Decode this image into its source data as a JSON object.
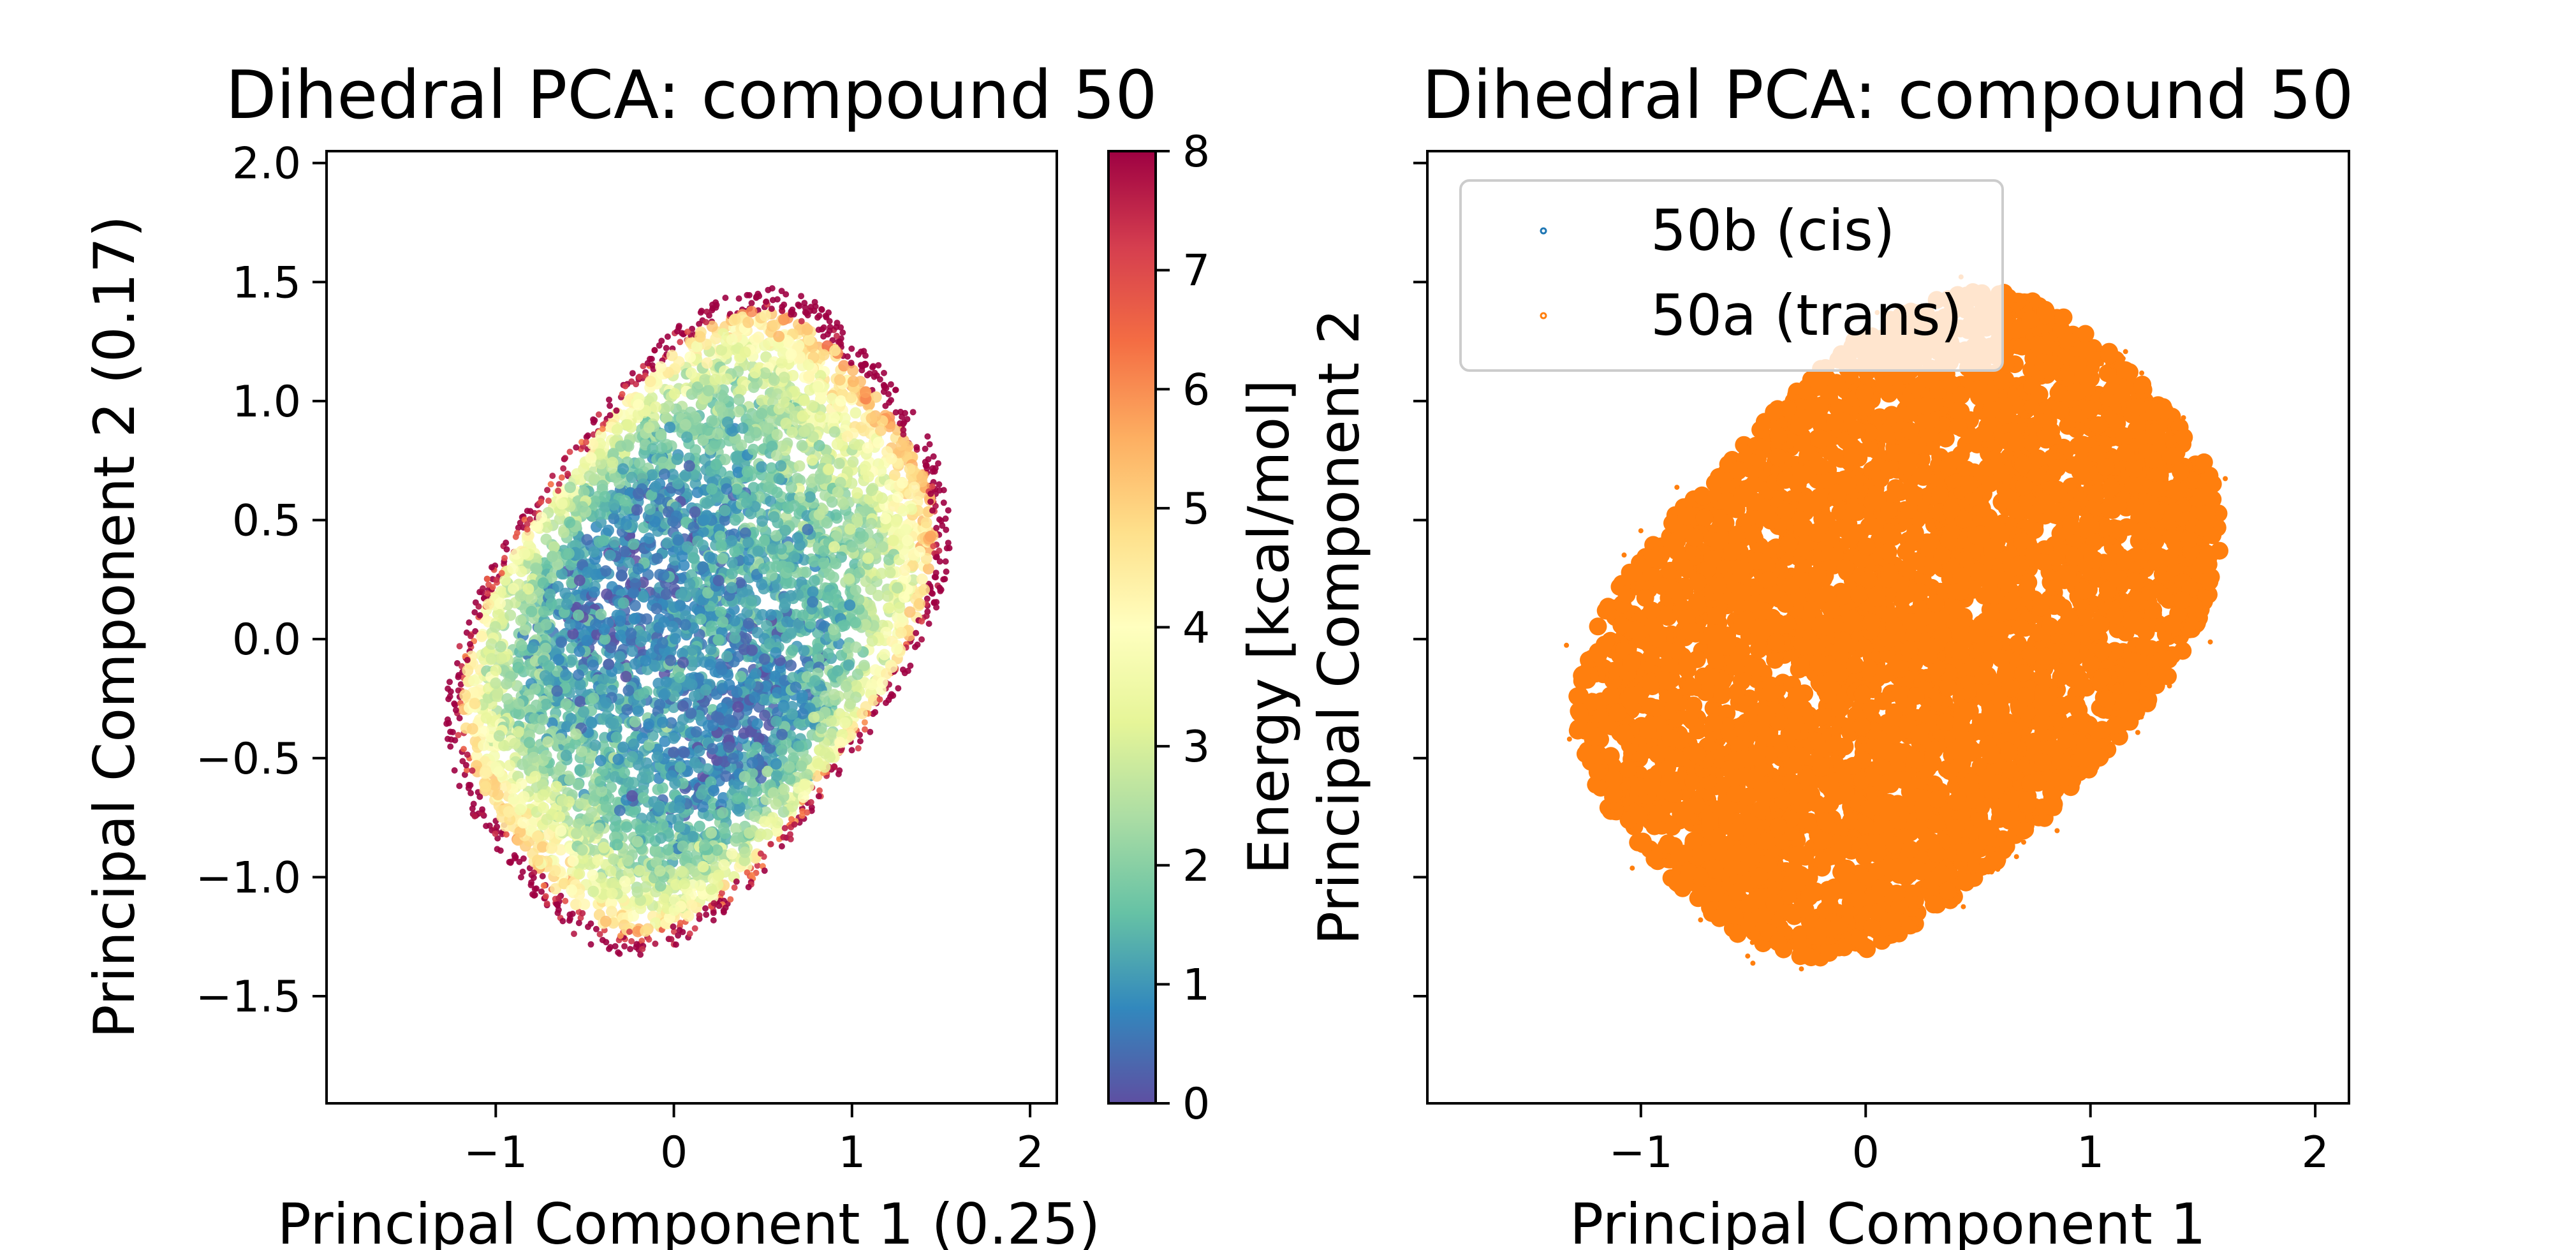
{
  "chart_data": [
    {
      "type": "scatter",
      "title": "Dihedral PCA: compound 50",
      "xlabel": "Principal Component 1 (0.25)",
      "ylabel": "Principal Component 2 (0.17)",
      "xlim": [
        -1.95,
        2.15
      ],
      "ylim": [
        -1.95,
        2.05
      ],
      "xticks": [
        -1,
        0,
        1,
        2
      ],
      "yticks": [
        -1.5,
        -1.0,
        -0.5,
        0.0,
        0.5,
        1.0,
        1.5,
        2.0
      ],
      "xtick_labels": [
        "−1",
        "0",
        "1",
        "2"
      ],
      "ytick_labels": [
        "−1.5",
        "−1.0",
        "−0.5",
        "0.0",
        "0.5",
        "1.0",
        "1.5",
        "2.0"
      ],
      "grid": false,
      "cloud": {
        "description_shape": "rotated rounded square",
        "center": [
          0.1,
          0.15
        ],
        "vertices": [
          [
            -1.75,
            -0.2
          ],
          [
            0.55,
            1.75
          ],
          [
            1.8,
            0.5
          ],
          [
            -0.05,
            -1.75
          ]
        ],
        "low_energy_centers": [
          [
            -0.35,
            0.3
          ],
          [
            0.45,
            -0.5
          ]
        ]
      },
      "colorbar": {
        "label": "Energy [kcal/mol]",
        "range": [
          0,
          8
        ],
        "ticks": [
          0,
          1,
          2,
          3,
          4,
          5,
          6,
          7,
          8
        ],
        "colormap": "Spectral_r",
        "stops": [
          "#5e4fa2",
          "#3288bd",
          "#66c2a5",
          "#abdda4",
          "#e6f598",
          "#ffffbf",
          "#fee08b",
          "#fdae61",
          "#f46d43",
          "#d53e4f",
          "#9e0142"
        ]
      }
    },
    {
      "type": "scatter",
      "title": "Dihedral PCA: compound 50",
      "xlabel": "Principal Component 1",
      "ylabel": "Principal Component 2",
      "xlim": [
        -1.95,
        2.15
      ],
      "ylim": [
        -1.95,
        2.05
      ],
      "xticks": [
        -1,
        0,
        1,
        2
      ],
      "yticks": [
        -1.5,
        -1.0,
        -0.5,
        0.0,
        0.5,
        1.0,
        1.5,
        2.0
      ],
      "xtick_labels": [
        "−1",
        "0",
        "1",
        "2"
      ],
      "ytick_labels": [],
      "grid": false,
      "legend": {
        "placement": "top-left",
        "entries": [
          {
            "name": "50b (cis)",
            "color": "#1f77b4"
          },
          {
            "name": "50a (trans)",
            "color": "#ff7f0e"
          }
        ]
      },
      "cloud": {
        "center": [
          0.1,
          0.15
        ],
        "vertices": [
          [
            -1.75,
            -0.2
          ],
          [
            0.55,
            1.75
          ],
          [
            1.85,
            0.45
          ],
          [
            -0.05,
            -1.75
          ]
        ],
        "color": "#ff7f0e"
      }
    }
  ]
}
